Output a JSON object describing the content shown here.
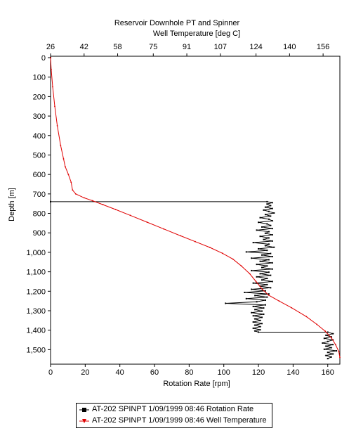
{
  "chart_data": {
    "type": "line",
    "title": "Reservoir Downhole PT and Spinner",
    "top_axis": {
      "label": "Well Temperature [deg C]",
      "range": [
        26,
        164
      ],
      "ticks": [
        "26",
        "42",
        "58",
        "75",
        "91",
        "107",
        "124",
        "140",
        "156"
      ]
    },
    "bottom_axis": {
      "label": "Rotation Rate [rpm]",
      "range": [
        0,
        167
      ],
      "ticks": [
        "0",
        "20",
        "40",
        "60",
        "80",
        "100",
        "120",
        "140",
        "160"
      ]
    },
    "y_axis": {
      "label": "Depth [m]",
      "range": [
        0,
        1560
      ],
      "inverted": true,
      "ticks": [
        "0",
        "100",
        "200",
        "300",
        "400",
        "500",
        "600",
        "700",
        "800",
        "900",
        "1,000",
        "1,100",
        "1,200",
        "1,300",
        "1,400",
        "1,500"
      ]
    },
    "grid": false,
    "legend_placement": "bottom",
    "series": [
      {
        "name": "AT-202 SPINPT 1/09/1999 08:46 Rotation Rate",
        "axis": "bottom",
        "color": "#000000",
        "marker": "square",
        "points": [
          [
            0,
            0
          ],
          [
            0,
            740
          ],
          [
            125,
            740
          ],
          [
            128,
            745
          ],
          [
            125,
            752
          ],
          [
            127,
            760
          ],
          [
            124,
            768
          ],
          [
            128,
            775
          ],
          [
            123,
            783
          ],
          [
            126,
            790
          ],
          [
            129,
            798
          ],
          [
            124,
            806
          ],
          [
            127,
            814
          ],
          [
            121,
            822
          ],
          [
            126,
            830
          ],
          [
            128,
            838
          ],
          [
            120,
            846
          ],
          [
            125,
            854
          ],
          [
            127,
            862
          ],
          [
            122,
            870
          ],
          [
            128,
            878
          ],
          [
            119,
            886
          ],
          [
            126,
            894
          ],
          [
            124,
            902
          ],
          [
            128,
            910
          ],
          [
            121,
            918
          ],
          [
            126,
            926
          ],
          [
            123,
            934
          ],
          [
            128,
            942
          ],
          [
            117,
            950
          ],
          [
            126,
            958
          ],
          [
            124,
            966
          ],
          [
            129,
            974
          ],
          [
            120,
            982
          ],
          [
            125,
            990
          ],
          [
            113,
            998
          ],
          [
            127,
            1006
          ],
          [
            122,
            1014
          ],
          [
            128,
            1022
          ],
          [
            116,
            1030
          ],
          [
            126,
            1038
          ],
          [
            121,
            1046
          ],
          [
            128,
            1054
          ],
          [
            119,
            1062
          ],
          [
            125,
            1070
          ],
          [
            122,
            1078
          ],
          [
            128,
            1086
          ],
          [
            116,
            1094
          ],
          [
            126,
            1102
          ],
          [
            121,
            1110
          ],
          [
            127,
            1118
          ],
          [
            119,
            1126
          ],
          [
            125,
            1134
          ],
          [
            122,
            1142
          ],
          [
            128,
            1150
          ],
          [
            117,
            1158
          ],
          [
            125,
            1166
          ],
          [
            121,
            1174
          ],
          [
            127,
            1182
          ],
          [
            116,
            1190
          ],
          [
            124,
            1198
          ],
          [
            112,
            1206
          ],
          [
            126,
            1214
          ],
          [
            118,
            1222
          ],
          [
            125,
            1230
          ],
          [
            113,
            1238
          ],
          [
            124,
            1246
          ],
          [
            119,
            1254
          ],
          [
            101,
            1262
          ],
          [
            124,
            1270
          ],
          [
            117,
            1278
          ],
          [
            123,
            1286
          ],
          [
            118,
            1294
          ],
          [
            122,
            1302
          ],
          [
            116,
            1310
          ],
          [
            123,
            1318
          ],
          [
            117,
            1326
          ],
          [
            122,
            1334
          ],
          [
            118,
            1342
          ],
          [
            121,
            1350
          ],
          [
            117,
            1358
          ],
          [
            122,
            1366
          ],
          [
            118,
            1374
          ],
          [
            121,
            1382
          ],
          [
            117,
            1390
          ],
          [
            121,
            1398
          ],
          [
            118,
            1404
          ],
          [
            120,
            1410
          ],
          [
            160,
            1410
          ],
          [
            163,
            1418
          ],
          [
            159,
            1426
          ],
          [
            162,
            1434
          ],
          [
            158,
            1442
          ],
          [
            163,
            1450
          ],
          [
            160,
            1458
          ],
          [
            157,
            1466
          ],
          [
            163,
            1474
          ],
          [
            159,
            1482
          ],
          [
            162,
            1490
          ],
          [
            158,
            1498
          ],
          [
            165,
            1506
          ],
          [
            160,
            1514
          ],
          [
            163,
            1522
          ],
          [
            159,
            1530
          ],
          [
            162,
            1538
          ],
          [
            160,
            1546
          ]
        ]
      },
      {
        "name": "AT-202 SPINPT 1/09/1999 08:46 Well Temperature",
        "axis": "top",
        "color": "#e00000",
        "marker": "triangle-down",
        "points": [
          [
            26,
            0
          ],
          [
            26.3,
            60
          ],
          [
            27,
            150
          ],
          [
            28,
            250
          ],
          [
            29.2,
            350
          ],
          [
            30.8,
            450
          ],
          [
            32.2,
            520
          ],
          [
            33,
            560
          ],
          [
            34.5,
            600
          ],
          [
            35.8,
            640
          ],
          [
            36.5,
            680
          ],
          [
            38,
            700
          ],
          [
            42,
            720
          ],
          [
            46,
            735
          ],
          [
            51,
            755
          ],
          [
            57,
            780
          ],
          [
            64,
            810
          ],
          [
            72,
            845
          ],
          [
            80,
            880
          ],
          [
            88,
            915
          ],
          [
            95,
            945
          ],
          [
            102,
            975
          ],
          [
            108,
            1005
          ],
          [
            113,
            1035
          ],
          [
            117,
            1070
          ],
          [
            121,
            1110
          ],
          [
            124,
            1150
          ],
          [
            127,
            1190
          ],
          [
            130,
            1220
          ],
          [
            135,
            1250
          ],
          [
            141,
            1285
          ],
          [
            148,
            1330
          ],
          [
            153,
            1370
          ],
          [
            157,
            1405
          ],
          [
            160,
            1440
          ],
          [
            162,
            1475
          ],
          [
            163.5,
            1510
          ],
          [
            164,
            1540
          ]
        ]
      }
    ]
  }
}
